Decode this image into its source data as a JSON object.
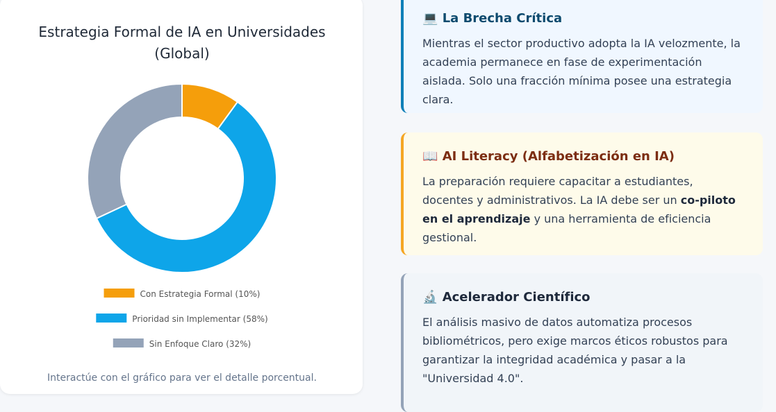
{
  "chart_data": {
    "type": "doughnut",
    "title": [
      "Estrategia Formal de IA en Universidades",
      "(Global)"
    ],
    "categories": [
      "Con Estrategia Formal (10%)",
      "Prioridad sin Implementar (58%)",
      "Sin Enfoque Claro (32%)"
    ],
    "values": [
      10,
      58,
      32
    ],
    "colors": [
      "#f59e0b",
      "#0ea5e9",
      "#94a3b8"
    ],
    "note": "Interactúe con el gráfico para ver el detalle porcentual."
  },
  "cards": [
    {
      "icon": "💻",
      "title": "La Brecha Crítica",
      "body": [
        {
          "text": "Mientras el sector productivo adopta la IA velozmente, la academia permanece en fase de experimentación aislada. Solo una fracción mínima posee una estrategia clara."
        }
      ]
    },
    {
      "icon": "📖",
      "title": "AI Literacy (Alfabetización en IA)",
      "body": [
        {
          "text": "La preparación requiere capacitar a estudiantes, docentes y administrativos. La IA debe ser un "
        },
        {
          "text": "co-piloto en el aprendizaje",
          "bold": true
        },
        {
          "text": " y una herramienta de eficiencia gestional."
        }
      ]
    },
    {
      "icon": "🔬",
      "title": "Acelerador Científico",
      "body": [
        {
          "text": "El análisis masivo de datos automatiza procesos bibliométricos, pero exige marcos éticos robustos para garantizar la integridad académica y pasar a la \"Universidad 4.0\"."
        }
      ]
    }
  ]
}
